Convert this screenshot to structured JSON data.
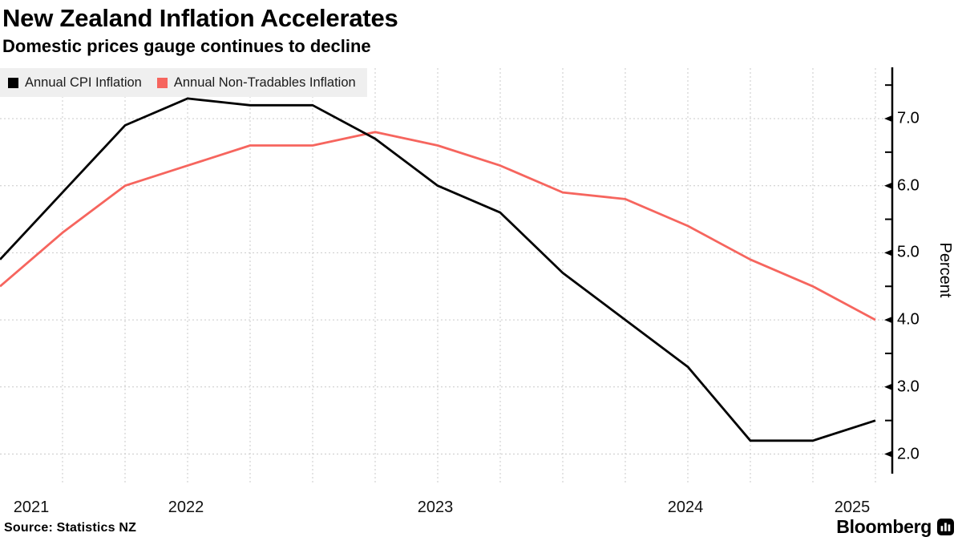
{
  "header": {
    "title": "New Zealand Inflation Accelerates",
    "subtitle": "Domestic prices gauge continues to decline"
  },
  "footer": {
    "source": "Source: Statistics NZ",
    "brand": "Bloomberg",
    "brand_icon": "bar-chart-icon"
  },
  "chart_data": {
    "type": "line",
    "x": [
      "2021 Q3",
      "2021 Q4",
      "2022 Q1",
      "2022 Q2",
      "2022 Q3",
      "2022 Q4",
      "2023 Q1",
      "2023 Q2",
      "2023 Q3",
      "2023 Q4",
      "2024 Q1",
      "2024 Q2",
      "2024 Q3",
      "2024 Q4",
      "2025 Q1"
    ],
    "series": [
      {
        "name": "Annual CPI Inflation",
        "color": "#000000",
        "values": [
          4.9,
          5.9,
          6.9,
          7.3,
          7.2,
          7.2,
          6.7,
          6.0,
          5.6,
          4.7,
          4.0,
          3.3,
          2.2,
          2.2,
          2.5
        ]
      },
      {
        "name": "Annual Non-Tradables Inflation",
        "color": "#F6655E",
        "values": [
          4.5,
          5.3,
          6.0,
          6.3,
          6.6,
          6.6,
          6.8,
          6.6,
          6.3,
          5.9,
          5.8,
          5.4,
          4.9,
          4.5,
          4.0
        ]
      }
    ],
    "ylabel": "Percent",
    "ylim": [
      1.7,
      7.75
    ],
    "y_ticks_major": [
      2.0,
      3.0,
      4.0,
      5.0,
      6.0,
      7.0
    ],
    "y_tick_labels": [
      "2.0",
      "3.0",
      "4.0",
      "5.0",
      "6.0",
      "7.0"
    ],
    "y_ticks_minor": [
      2.5,
      3.5,
      4.5,
      5.5,
      6.5,
      7.5
    ],
    "x_year_labels": [
      "2021",
      "2022",
      "2023",
      "2024",
      "2025"
    ],
    "legend_position": "top-left",
    "grid": "dashed-both-axes",
    "grid_color": "#c9c9c9",
    "legend_background": "#efefef"
  }
}
